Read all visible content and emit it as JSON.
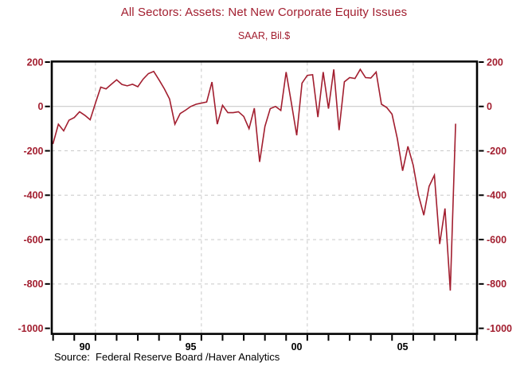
{
  "page": {
    "background": "#FFFFFF"
  },
  "header": {
    "title": "All Sectors: Assets: Net New Corporate Equity Issues",
    "subtitle": "SAAR, Bil.$"
  },
  "footer": {
    "source_text": "Source:  Federal Reserve Board /Haver Analytics"
  },
  "colors": {
    "accent_red": "#A21E2F",
    "line": "#A21E2F",
    "grid_dashed": "#C9C9C9",
    "zero_line": "#C2C2C2",
    "frame": "#000000",
    "tick": "#000000",
    "x_label": "#000000",
    "background": "#FFFFFF"
  },
  "chart_data": {
    "type": "line",
    "title": "All Sectors: Assets: Net New Corporate Equity Issues",
    "subtitle": "SAAR, Bil.$",
    "series_name": "Net New Corporate Equity Issues",
    "units": "SAAR, Bil.$",
    "frequency": "quarterly",
    "start_period": "1989Q1",
    "end_period": "2008Q1",
    "values": [
      -167,
      -80,
      -110,
      -62,
      -50,
      -24,
      -40,
      -60,
      15,
      87,
      79,
      100,
      120,
      99,
      93,
      100,
      89,
      123,
      148,
      158,
      120,
      80,
      33,
      -80,
      -32,
      -17,
      0,
      10,
      15,
      20,
      110,
      -80,
      5,
      -28,
      -28,
      -24,
      -45,
      -100,
      -8,
      -250,
      -90,
      -10,
      0,
      -18,
      155,
      15,
      -130,
      105,
      140,
      143,
      -48,
      155,
      -10,
      167,
      -107,
      111,
      130,
      126,
      167,
      130,
      128,
      155,
      10,
      -5,
      -35,
      -145,
      -290,
      -180,
      -265,
      -400,
      -490,
      -360,
      -310,
      -620,
      -460,
      -830,
      -80
    ],
    "ylim": [
      -1030,
      200
    ],
    "xlim_years": [
      1988.9,
      2009.05
    ],
    "grid": "on",
    "legend": "none",
    "y_ticks": [
      200,
      0,
      -200,
      -400,
      -600,
      -800,
      -1000
    ],
    "y_gridlines_dashed": [
      -200,
      -400,
      -600,
      -800
    ],
    "y_gridline_solid": 0,
    "x_tick_year_start": 1989,
    "x_tick_year_end": 2009,
    "x_gridline_years": [
      1991,
      1996,
      2001,
      2006
    ],
    "x_labels": [
      {
        "text": "90",
        "year": 1990.5
      },
      {
        "text": "95",
        "year": 1995.5
      },
      {
        "text": "00",
        "year": 2000.5
      },
      {
        "text": "05",
        "year": 2005.5
      }
    ]
  }
}
